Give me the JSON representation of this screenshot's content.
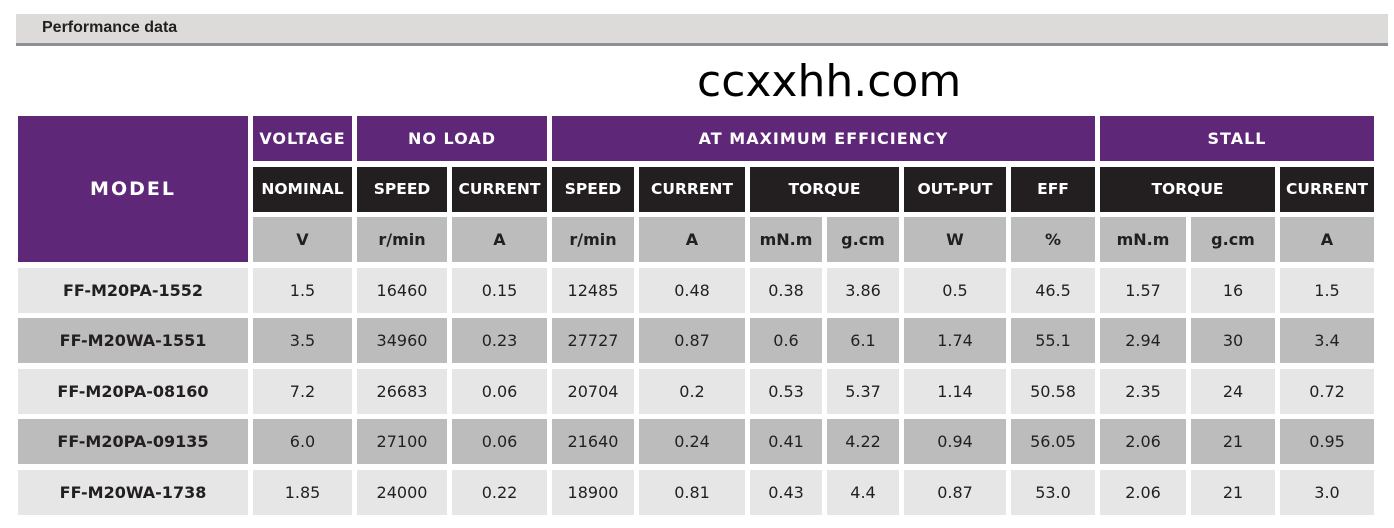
{
  "title": "Performance data",
  "header": {
    "model": "MODEL",
    "groups": {
      "voltage": "VOLTAGE",
      "no_load": "NO LOAD",
      "max_eff": "AT MAXIMUM EFFICIENCY",
      "stall": "STALL"
    },
    "columns": {
      "nominal": "NOMINAL",
      "nl_speed": "SPEED",
      "nl_current": "CURRENT",
      "me_speed": "SPEED",
      "me_current": "CURRENT",
      "me_torque": "TORQUE",
      "me_output": "OUT-PUT",
      "me_eff": "EFF",
      "st_torque": "TORQUE",
      "st_current": "CURRENT"
    },
    "units": [
      "V",
      "r/min",
      "A",
      "r/min",
      "A",
      "mN.m",
      "g.cm",
      "W",
      "%",
      "mN.m",
      "g.cm",
      "A"
    ]
  },
  "rows": [
    [
      "FF-M20PA-1552",
      "1.5",
      "16460",
      "0.15",
      "12485",
      "0.48",
      "0.38",
      "3.86",
      "0.5",
      "46.5",
      "1.57",
      "16",
      "1.5"
    ],
    [
      "FF-M20WA-1551",
      "3.5",
      "34960",
      "0.23",
      "27727",
      "0.87",
      "0.6",
      "6.1",
      "1.74",
      "55.1",
      "2.94",
      "30",
      "3.4"
    ],
    [
      "FF-M20PA-08160",
      "7.2",
      "26683",
      "0.06",
      "20704",
      "0.2",
      "0.53",
      "5.37",
      "1.14",
      "50.58",
      "2.35",
      "24",
      "0.72"
    ],
    [
      "FF-M20PA-09135",
      "6.0",
      "27100",
      "0.06",
      "21640",
      "0.24",
      "0.41",
      "4.22",
      "0.94",
      "56.05",
      "2.06",
      "21",
      "0.95"
    ],
    [
      "FF-M20WA-1738",
      "1.85",
      "24000",
      "0.22",
      "18900",
      "0.81",
      "0.43",
      "4.4",
      "0.87",
      "53.0",
      "2.06",
      "21",
      "3.0"
    ]
  ],
  "watermark": "ccxxhh.com",
  "colors": {
    "header_purple": "#5e2778",
    "header_black": "#231f20",
    "unit_gray": "#bdbcbc",
    "row_light": "#e6e6e6",
    "row_dark": "#bdbcbc"
  }
}
